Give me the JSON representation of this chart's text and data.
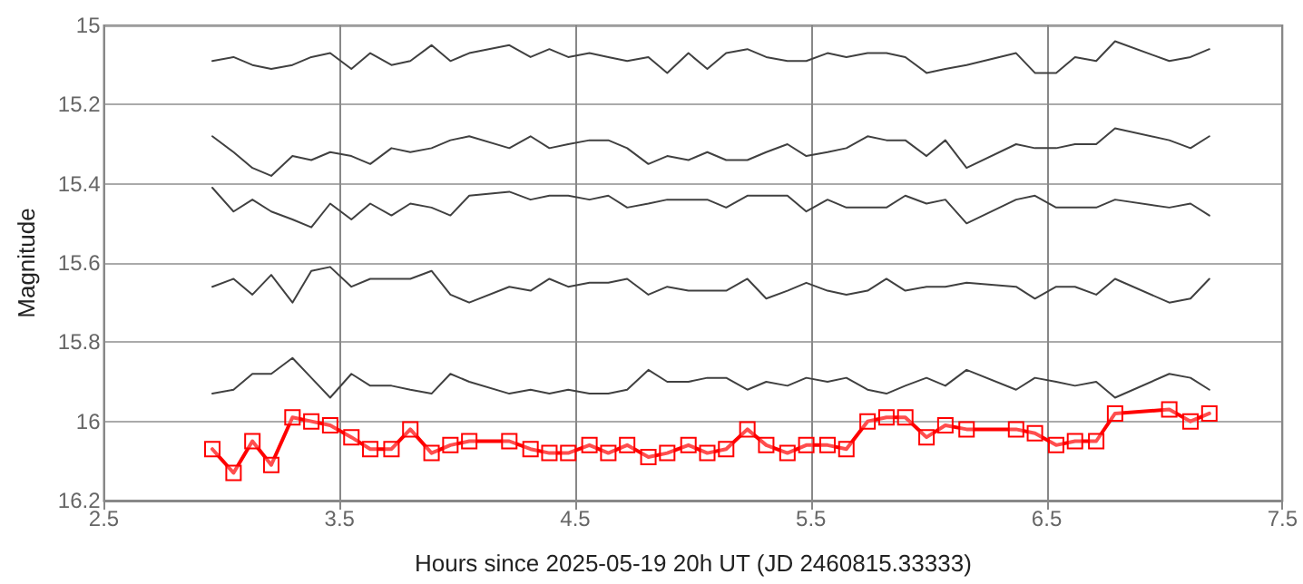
{
  "chart_data": {
    "type": "line",
    "xlabel": "Hours since 2025-05-19 20h UT (JD 2460815.33333)",
    "ylabel": "Magnitude",
    "x": [
      2.96,
      3.05,
      3.13,
      3.21,
      3.3,
      3.38,
      3.46,
      3.55,
      3.63,
      3.72,
      3.8,
      3.89,
      3.97,
      4.05,
      4.22,
      4.31,
      4.39,
      4.47,
      4.56,
      4.64,
      4.72,
      4.81,
      4.89,
      4.98,
      5.06,
      5.14,
      5.23,
      5.31,
      5.4,
      5.48,
      5.57,
      5.65,
      5.74,
      5.82,
      5.9,
      5.99,
      6.07,
      6.16,
      6.37,
      6.45,
      6.54,
      6.62,
      6.71,
      6.79,
      7.02,
      7.11,
      7.19
    ],
    "series": [
      {
        "color": "#404040",
        "marker": "none",
        "values": [
          15.09,
          15.08,
          15.1,
          15.11,
          15.1,
          15.08,
          15.07,
          15.11,
          15.07,
          15.1,
          15.09,
          15.05,
          15.09,
          15.07,
          15.05,
          15.08,
          15.06,
          15.08,
          15.07,
          15.08,
          15.09,
          15.08,
          15.12,
          15.07,
          15.11,
          15.07,
          15.06,
          15.08,
          15.09,
          15.09,
          15.07,
          15.08,
          15.07,
          15.07,
          15.08,
          15.12,
          15.11,
          15.1,
          15.07,
          15.12,
          15.12,
          15.08,
          15.09,
          15.04,
          15.09,
          15.08,
          15.06
        ]
      },
      {
        "color": "#404040",
        "marker": "none",
        "values": [
          15.28,
          15.32,
          15.36,
          15.38,
          15.33,
          15.34,
          15.32,
          15.33,
          15.35,
          15.31,
          15.32,
          15.31,
          15.29,
          15.28,
          15.31,
          15.28,
          15.31,
          15.3,
          15.29,
          15.29,
          15.31,
          15.35,
          15.33,
          15.34,
          15.32,
          15.34,
          15.34,
          15.32,
          15.3,
          15.33,
          15.32,
          15.31,
          15.28,
          15.29,
          15.29,
          15.33,
          15.29,
          15.36,
          15.3,
          15.31,
          15.31,
          15.3,
          15.3,
          15.26,
          15.29,
          15.31,
          15.28
        ]
      },
      {
        "color": "#404040",
        "marker": "none",
        "values": [
          15.41,
          15.47,
          15.44,
          15.47,
          15.49,
          15.51,
          15.45,
          15.49,
          15.45,
          15.48,
          15.45,
          15.46,
          15.48,
          15.43,
          15.42,
          15.44,
          15.43,
          15.43,
          15.44,
          15.43,
          15.46,
          15.45,
          15.44,
          15.44,
          15.44,
          15.46,
          15.43,
          15.43,
          15.43,
          15.47,
          15.44,
          15.46,
          15.46,
          15.46,
          15.43,
          15.45,
          15.44,
          15.5,
          15.44,
          15.43,
          15.46,
          15.46,
          15.46,
          15.44,
          15.46,
          15.45,
          15.48
        ]
      },
      {
        "color": "#404040",
        "marker": "none",
        "values": [
          15.66,
          15.64,
          15.68,
          15.63,
          15.7,
          15.62,
          15.61,
          15.66,
          15.64,
          15.64,
          15.64,
          15.62,
          15.68,
          15.7,
          15.66,
          15.67,
          15.64,
          15.66,
          15.65,
          15.65,
          15.64,
          15.68,
          15.66,
          15.67,
          15.67,
          15.67,
          15.64,
          15.69,
          15.67,
          15.65,
          15.67,
          15.68,
          15.67,
          15.64,
          15.67,
          15.66,
          15.66,
          15.65,
          15.66,
          15.69,
          15.66,
          15.66,
          15.68,
          15.64,
          15.7,
          15.69,
          15.64
        ]
      },
      {
        "color": "#404040",
        "marker": "none",
        "values": [
          15.93,
          15.92,
          15.88,
          15.88,
          15.84,
          15.89,
          15.94,
          15.88,
          15.91,
          15.91,
          15.92,
          15.93,
          15.88,
          15.9,
          15.93,
          15.92,
          15.93,
          15.92,
          15.93,
          15.93,
          15.92,
          15.87,
          15.9,
          15.9,
          15.89,
          15.89,
          15.92,
          15.9,
          15.91,
          15.89,
          15.9,
          15.89,
          15.92,
          15.93,
          15.91,
          15.89,
          15.91,
          15.87,
          15.92,
          15.89,
          15.9,
          15.91,
          15.9,
          15.94,
          15.88,
          15.89,
          15.92
        ]
      },
      {
        "color": "#ff0000",
        "marker": "square",
        "values": [
          16.07,
          16.13,
          16.05,
          16.11,
          15.99,
          16.0,
          16.01,
          16.04,
          16.07,
          16.07,
          16.02,
          16.08,
          16.06,
          16.05,
          16.05,
          16.07,
          16.08,
          16.08,
          16.06,
          16.08,
          16.06,
          16.09,
          16.08,
          16.06,
          16.08,
          16.07,
          16.02,
          16.06,
          16.08,
          16.06,
          16.06,
          16.07,
          16.0,
          15.99,
          15.99,
          16.04,
          16.01,
          16.02,
          16.02,
          16.03,
          16.06,
          16.05,
          16.05,
          15.98,
          15.97,
          16.0,
          15.98
        ]
      }
    ],
    "xlim": [
      2.5,
      7.5
    ],
    "xticks": [
      2.5,
      3.5,
      4.5,
      5.5,
      6.5,
      7.5
    ],
    "ylim": [
      16.2,
      15
    ],
    "yticks": [
      15,
      15.2,
      15.4,
      15.6,
      15.8,
      16,
      16.2
    ],
    "grid": true
  }
}
